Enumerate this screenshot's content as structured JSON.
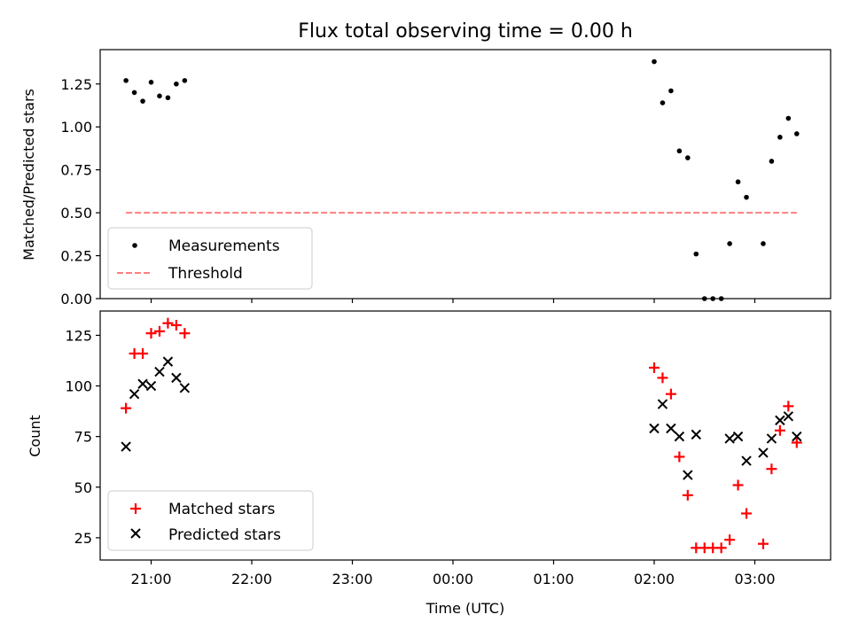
{
  "chart_data": [
    {
      "type": "scatter",
      "title": "Flux total observing time = 0.00 h",
      "xlabel": "",
      "ylabel": "Matched/Predicted stars",
      "ylim": [
        0,
        1.45
      ],
      "yticks": [
        0.0,
        0.25,
        0.5,
        0.75,
        1.0,
        1.25
      ],
      "yticklabels": [
        "0.00",
        "0.25",
        "0.50",
        "0.75",
        "1.00",
        "1.25"
      ],
      "legend_position": "lower-left",
      "series": [
        {
          "name": "Measurements",
          "marker": "dot",
          "color": "#000000",
          "x": [
            "20:45",
            "20:50",
            "20:55",
            "21:00",
            "21:05",
            "21:10",
            "21:15",
            "21:20",
            "02:00",
            "02:05",
            "02:10",
            "02:15",
            "02:20",
            "02:25",
            "02:30",
            "02:35",
            "02:40",
            "02:45",
            "02:50",
            "02:55",
            "03:05",
            "03:10",
            "03:15",
            "03:20",
            "03:25"
          ],
          "y": [
            1.27,
            1.2,
            1.15,
            1.26,
            1.18,
            1.17,
            1.25,
            1.27,
            1.38,
            1.14,
            1.21,
            0.86,
            0.82,
            0.26,
            0.0,
            0.0,
            0.0,
            0.32,
            0.68,
            0.59,
            0.32,
            0.8,
            0.94,
            1.05,
            0.96
          ]
        },
        {
          "name": "Threshold",
          "marker": "dashed-line",
          "color": "#ff7f7f",
          "x": [
            "20:45",
            "03:25"
          ],
          "y": [
            0.5,
            0.5
          ]
        }
      ]
    },
    {
      "type": "scatter",
      "title": "",
      "xlabel": "Time (UTC)",
      "ylabel": "Count",
      "ylim": [
        14,
        137
      ],
      "yticks": [
        25,
        50,
        75,
        100,
        125
      ],
      "yticklabels": [
        "25",
        "50",
        "75",
        "100",
        "125"
      ],
      "xticklabels": [
        "21:00",
        "22:00",
        "23:00",
        "00:00",
        "01:00",
        "02:00",
        "03:00"
      ],
      "legend_position": "lower-left",
      "series": [
        {
          "name": "Matched stars",
          "marker": "plus",
          "color": "#ff0000",
          "x": [
            "20:45",
            "20:50",
            "20:55",
            "21:00",
            "21:05",
            "21:10",
            "21:15",
            "21:20",
            "02:00",
            "02:05",
            "02:10",
            "02:15",
            "02:20",
            "02:25",
            "02:30",
            "02:35",
            "02:40",
            "02:45",
            "02:50",
            "02:55",
            "03:05",
            "03:10",
            "03:15",
            "03:20",
            "03:25"
          ],
          "y": [
            89,
            116,
            116,
            126,
            127,
            131,
            130,
            126,
            109,
            104,
            96,
            65,
            46,
            20,
            20,
            20,
            20,
            24,
            51,
            37,
            22,
            59,
            78,
            90,
            72
          ]
        },
        {
          "name": "Predicted stars",
          "marker": "x",
          "color": "#000000",
          "x": [
            "20:45",
            "20:50",
            "20:55",
            "21:00",
            "21:05",
            "21:10",
            "21:15",
            "21:20",
            "02:00",
            "02:05",
            "02:10",
            "02:15",
            "02:20",
            "02:25",
            "02:45",
            "02:50",
            "02:55",
            "03:05",
            "03:10",
            "03:15",
            "03:20",
            "03:25"
          ],
          "y": [
            70,
            96,
            101,
            100,
            107,
            112,
            104,
            99,
            79,
            91,
            79,
            75,
            56,
            76,
            74,
            75,
            63,
            67,
            74,
            83,
            85,
            75
          ]
        }
      ]
    }
  ]
}
